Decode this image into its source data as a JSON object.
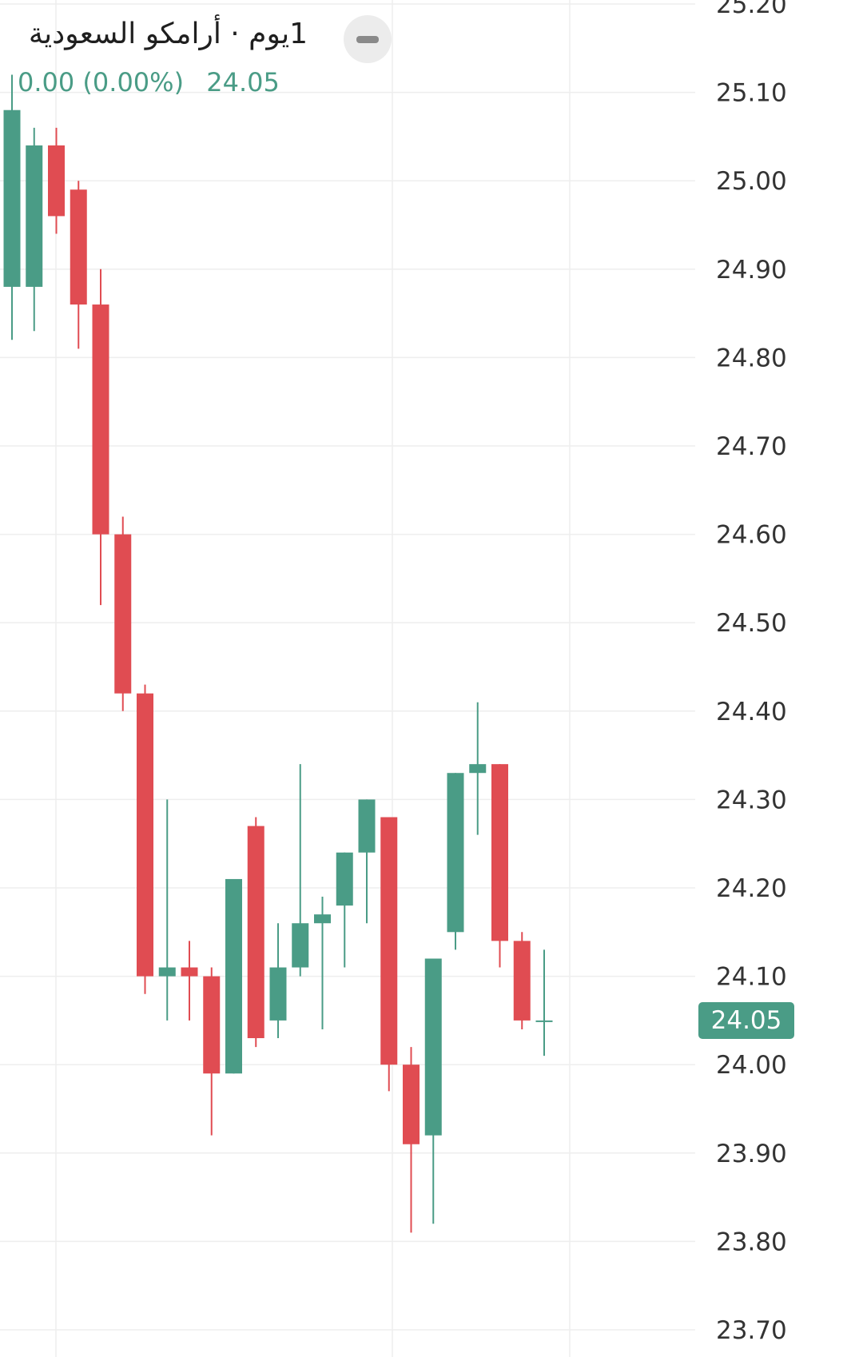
{
  "header": {
    "title": "1يوم · أرامكو السعودية",
    "change": "0.00 (0.00%)",
    "last_price": "24.05"
  },
  "price_badge": "24.05",
  "colors": {
    "up": "#4a9c86",
    "down": "#e04c52",
    "grid": "#eeeeee",
    "axis_text": "#333333",
    "legend_text": "#4a9c86"
  },
  "chart_data": {
    "type": "candlestick",
    "y_tick_labels": [
      "23.70",
      "23.80",
      "23.90",
      "24.00",
      "24.10",
      "24.20",
      "24.30",
      "24.40",
      "24.50",
      "24.60",
      "24.70",
      "24.80",
      "24.90",
      "25.00",
      "25.10",
      "25.20"
    ],
    "ylim": [
      23.68,
      25.21
    ],
    "grid": true,
    "current_price": 24.05,
    "candles": [
      {
        "o": 24.88,
        "h": 25.12,
        "l": 24.82,
        "c": 25.08
      },
      {
        "o": 24.88,
        "h": 25.06,
        "l": 24.83,
        "c": 25.04
      },
      {
        "o": 25.04,
        "h": 25.06,
        "l": 24.94,
        "c": 24.96
      },
      {
        "o": 24.99,
        "h": 25.0,
        "l": 24.81,
        "c": 24.86
      },
      {
        "o": 24.86,
        "h": 24.9,
        "l": 24.52,
        "c": 24.6
      },
      {
        "o": 24.6,
        "h": 24.62,
        "l": 24.4,
        "c": 24.42
      },
      {
        "o": 24.42,
        "h": 24.43,
        "l": 24.08,
        "c": 24.1
      },
      {
        "o": 24.1,
        "h": 24.3,
        "l": 24.05,
        "c": 24.11
      },
      {
        "o": 24.11,
        "h": 24.14,
        "l": 24.05,
        "c": 24.1
      },
      {
        "o": 24.1,
        "h": 24.11,
        "l": 23.92,
        "c": 23.99
      },
      {
        "o": 23.99,
        "h": 24.21,
        "l": 23.99,
        "c": 24.21
      },
      {
        "o": 24.27,
        "h": 24.28,
        "l": 24.02,
        "c": 24.03
      },
      {
        "o": 24.05,
        "h": 24.16,
        "l": 24.03,
        "c": 24.11
      },
      {
        "o": 24.11,
        "h": 24.34,
        "l": 24.1,
        "c": 24.16
      },
      {
        "o": 24.16,
        "h": 24.19,
        "l": 24.04,
        "c": 24.17
      },
      {
        "o": 24.18,
        "h": 24.24,
        "l": 24.11,
        "c": 24.24
      },
      {
        "o": 24.24,
        "h": 24.3,
        "l": 24.16,
        "c": 24.3
      },
      {
        "o": 24.28,
        "h": 24.28,
        "l": 23.97,
        "c": 24.0
      },
      {
        "o": 24.0,
        "h": 24.02,
        "l": 23.81,
        "c": 23.91
      },
      {
        "o": 23.92,
        "h": 24.12,
        "l": 23.82,
        "c": 24.12
      },
      {
        "o": 24.15,
        "h": 24.33,
        "l": 24.13,
        "c": 24.33
      },
      {
        "o": 24.33,
        "h": 24.41,
        "l": 24.26,
        "c": 24.34
      },
      {
        "o": 24.34,
        "h": 24.34,
        "l": 24.11,
        "c": 24.14
      },
      {
        "o": 24.14,
        "h": 24.15,
        "l": 24.04,
        "c": 24.05
      },
      {
        "o": 24.05,
        "h": 24.13,
        "l": 24.01,
        "c": 24.05
      }
    ]
  }
}
